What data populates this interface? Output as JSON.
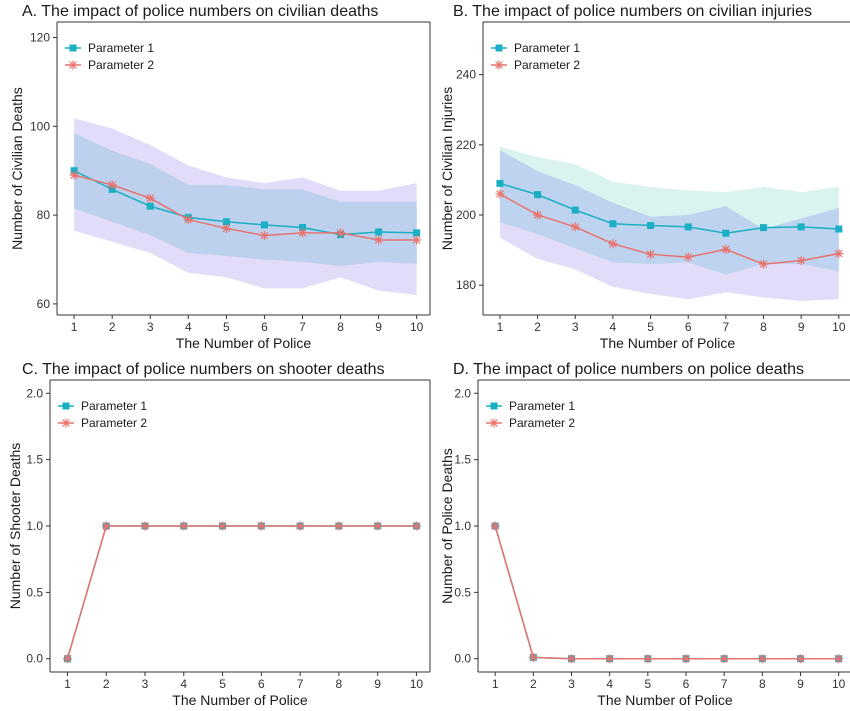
{
  "colors": {
    "param1": "#1AAFC3",
    "param2": "#E8736E",
    "band_purple": "#DAD0F5",
    "band_blue": "#C3D4EE",
    "band_teal": "#CDEFEA"
  },
  "chart_data": [
    {
      "type": "line",
      "title": "A. The impact of police numbers on civilian deaths",
      "xlabel": "The Number of Police",
      "ylabel": "Number of Civilian Deaths",
      "x": [
        1,
        2,
        3,
        4,
        5,
        6,
        7,
        8,
        9,
        10
      ],
      "xticks": [
        "1",
        "2",
        "3",
        "4",
        "5",
        "6",
        "7",
        "8",
        "9",
        "10"
      ],
      "yticks": [
        "60",
        "80",
        "100",
        "120"
      ],
      "ylim": [
        57.5,
        123.5
      ],
      "legend_position": "top-left",
      "series": [
        {
          "name": "Parameter 1",
          "values": [
            90.0,
            85.8,
            82.0,
            79.5,
            78.5,
            77.8,
            77.2,
            75.6,
            76.2,
            76.0
          ],
          "band_lower": [
            81.5,
            78.5,
            75.5,
            71.5,
            70.8,
            70.0,
            69.5,
            68.5,
            69.5,
            69.0
          ],
          "band_upper": [
            98.5,
            94.5,
            91.5,
            86.8,
            86.8,
            85.8,
            85.8,
            83.0,
            83.0,
            83.0
          ]
        },
        {
          "name": "Parameter 2",
          "values": [
            89.0,
            86.8,
            83.8,
            79.0,
            77.0,
            75.4,
            76.0,
            76.0,
            74.4,
            74.4
          ],
          "band_lower": [
            76.5,
            74.0,
            71.5,
            67.0,
            66.0,
            63.5,
            63.5,
            66.0,
            63.0,
            62.0
          ],
          "band_upper": [
            101.8,
            99.5,
            95.8,
            91.2,
            88.5,
            87.2,
            88.5,
            85.5,
            85.5,
            87.2
          ]
        }
      ]
    },
    {
      "type": "line",
      "title": "B. The impact of police numbers on civilian injuries",
      "xlabel": "The Number of Police",
      "ylabel": "Number of Civilian Injuries",
      "x": [
        1,
        2,
        3,
        4,
        5,
        6,
        7,
        8,
        9,
        10
      ],
      "xticks": [
        "1",
        "2",
        "3",
        "4",
        "5",
        "6",
        "7",
        "8",
        "9",
        "10"
      ],
      "yticks": [
        "180",
        "200",
        "220",
        "240"
      ],
      "ylim": [
        171.5,
        255.0
      ],
      "legend_position": "top-left",
      "series": [
        {
          "name": "Parameter 1",
          "values": [
            209.0,
            205.8,
            201.4,
            197.5,
            197.0,
            196.6,
            194.8,
            196.4,
            196.6,
            196.0
          ],
          "band_lower": [
            198.0,
            194.5,
            190.5,
            186.5,
            186.0,
            186.5,
            183.0,
            186.0,
            186.0,
            184.0
          ],
          "band_upper": [
            219.5,
            216.5,
            214.5,
            209.5,
            208.0,
            207.0,
            206.5,
            208.0,
            206.5,
            208.0
          ]
        },
        {
          "name": "Parameter 2",
          "values": [
            206.0,
            200.0,
            196.6,
            191.8,
            188.8,
            188.0,
            190.2,
            186.0,
            187.0,
            189.0
          ],
          "band_lower": [
            193.5,
            187.5,
            184.5,
            179.5,
            177.5,
            176.0,
            178.0,
            176.5,
            175.5,
            176.0
          ],
          "band_upper": [
            218.5,
            212.5,
            208.5,
            203.5,
            199.5,
            200.0,
            202.5,
            196.0,
            199.0,
            202.0
          ]
        }
      ]
    },
    {
      "type": "line",
      "title": "C. The impact of police numbers on shooter deaths",
      "xlabel": "The Number of Police",
      "ylabel": "Number of Shooter Deaths",
      "x": [
        1,
        2,
        3,
        4,
        5,
        6,
        7,
        8,
        9,
        10
      ],
      "xticks": [
        "1",
        "2",
        "3",
        "4",
        "5",
        "6",
        "7",
        "8",
        "9",
        "10"
      ],
      "yticks": [
        "0.0",
        "0.5",
        "1.0",
        "1.5",
        "2.0"
      ],
      "ylim": [
        -0.1,
        2.1
      ],
      "legend_position": "top-left",
      "series": [
        {
          "name": "Parameter 1",
          "values": [
            0,
            1,
            1,
            1,
            1,
            1,
            1,
            1,
            1,
            1
          ]
        },
        {
          "name": "Parameter 2",
          "values": [
            0,
            1,
            1,
            1,
            1,
            1,
            1,
            1,
            1,
            1
          ]
        }
      ]
    },
    {
      "type": "line",
      "title": "D. The impact of police numbers on police deaths",
      "xlabel": "The Number of Police",
      "ylabel": "Number of Police Deaths",
      "x": [
        1,
        2,
        3,
        4,
        5,
        6,
        7,
        8,
        9,
        10
      ],
      "xticks": [
        "1",
        "2",
        "3",
        "4",
        "5",
        "6",
        "7",
        "8",
        "9",
        "10"
      ],
      "yticks": [
        "0.0",
        "0.5",
        "1.0",
        "1.5",
        "2.0"
      ],
      "ylim": [
        -0.1,
        2.1
      ],
      "legend_position": "top-left",
      "series": [
        {
          "name": "Parameter 1",
          "values": [
            1,
            0.01,
            0,
            0,
            0,
            0,
            0,
            0,
            0,
            0
          ]
        },
        {
          "name": "Parameter 2",
          "values": [
            1,
            0.01,
            0,
            0,
            0,
            0,
            0,
            0,
            0,
            0
          ]
        }
      ]
    }
  ]
}
